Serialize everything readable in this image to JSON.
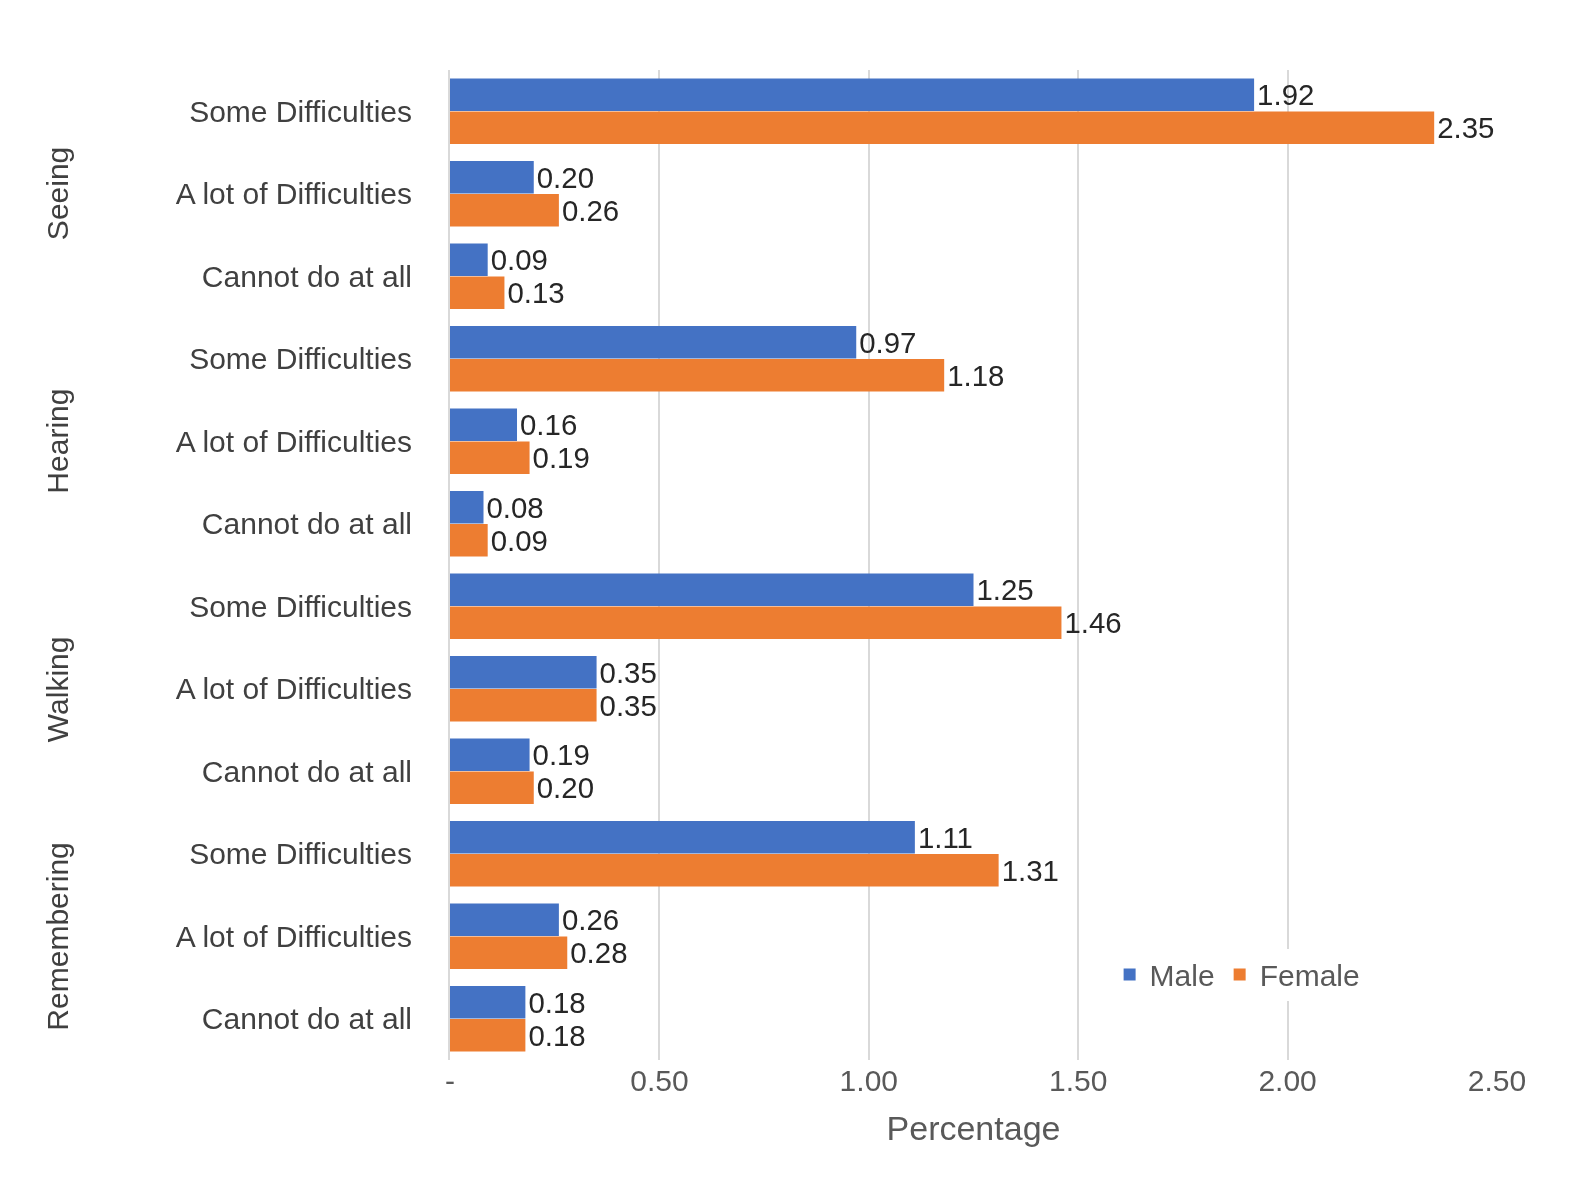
{
  "chart_data": {
    "type": "bar",
    "orientation": "horizontal",
    "xlabel": "Percentage",
    "categories": [
      "Some Difficulties",
      "A lot of Difficulties",
      "Cannot do at all",
      "Some Difficulties",
      "A lot of Difficulties",
      "Cannot do at all",
      "Some Difficulties",
      "A lot of Difficulties",
      "Cannot do at all",
      "Some Difficulties",
      "A lot of Difficulties",
      "Cannot do at all"
    ],
    "annotations": [
      "Seeing",
      "Hearing",
      "Walking",
      "Remembering"
    ],
    "series": [
      {
        "name": "Male",
        "color": "#4472c4",
        "values": [
          1.92,
          0.2,
          0.09,
          0.97,
          0.16,
          0.08,
          1.25,
          0.35,
          0.19,
          1.11,
          0.26,
          0.18
        ],
        "value_labels": [
          "1.92",
          "0.20",
          "0.09",
          "0.97",
          "0.16",
          "0.08",
          "1.25",
          "0.35",
          "0.19",
          "1.11",
          "0.26",
          "0.18"
        ]
      },
      {
        "name": "Female",
        "color": "#ed7d31",
        "values": [
          2.35,
          0.26,
          0.13,
          1.18,
          0.19,
          0.09,
          1.46,
          0.35,
          0.2,
          1.31,
          0.28,
          0.18
        ],
        "value_labels": [
          "2.35",
          "0.26",
          "0.13",
          "1.18",
          "0.19",
          "0.09",
          "1.46",
          "0.35",
          "0.20",
          "1.31",
          "0.28",
          "0.18"
        ]
      }
    ],
    "xlim": [
      0,
      2.5
    ],
    "xticks": [
      {
        "value": 0,
        "label": "-"
      },
      {
        "value": 0.5,
        "label": "0.50"
      },
      {
        "value": 1,
        "label": "1.00"
      },
      {
        "value": 1.5,
        "label": "1.50"
      },
      {
        "value": 2,
        "label": "2.00"
      },
      {
        "value": 2.5,
        "label": "2.50"
      }
    ],
    "grid": "x",
    "legend": "bottom right"
  }
}
